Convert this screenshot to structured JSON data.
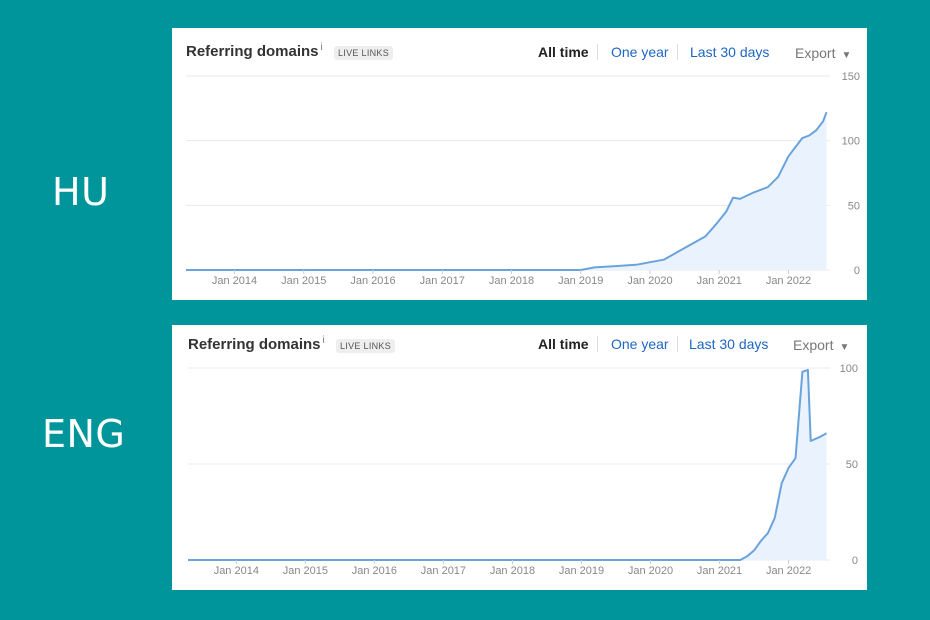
{
  "colors": {
    "background": "#00959a",
    "line": "#6aa3dc",
    "fill": "#eaf3fd",
    "link": "#1f66c2",
    "grid": "#e8e8e8"
  },
  "labels": {
    "top": "HU",
    "bottom": "ENG"
  },
  "header": {
    "title": "Referring domains",
    "info": "i",
    "badge": "LIVE LINKS",
    "ranges": [
      "All time",
      "One year",
      "Last 30 days"
    ],
    "active_range": "All time",
    "export": "Export",
    "export_icon": "caret-down-icon"
  },
  "chart_data": [
    {
      "type": "area",
      "title": "Referring domains",
      "series_label": "HU",
      "x_ticks": [
        "Jan 2014",
        "Jan 2015",
        "Jan 2016",
        "Jan 2017",
        "Jan 2018",
        "Jan 2019",
        "Jan 2020",
        "Jan 2021",
        "Jan 2022"
      ],
      "y_ticks": [
        0,
        50,
        100,
        150
      ],
      "ylim": [
        0,
        150
      ],
      "xlim": [
        2013.3,
        2022.6
      ],
      "grid": true,
      "points": [
        [
          2013.3,
          0
        ],
        [
          2019.0,
          0
        ],
        [
          2019.2,
          2
        ],
        [
          2019.5,
          3
        ],
        [
          2019.8,
          4
        ],
        [
          2020.0,
          6
        ],
        [
          2020.2,
          8
        ],
        [
          2020.4,
          14
        ],
        [
          2020.6,
          20
        ],
        [
          2020.8,
          26
        ],
        [
          2020.95,
          35
        ],
        [
          2021.1,
          45
        ],
        [
          2021.2,
          56
        ],
        [
          2021.3,
          55
        ],
        [
          2021.5,
          60
        ],
        [
          2021.7,
          64
        ],
        [
          2021.85,
          72
        ],
        [
          2022.0,
          88
        ],
        [
          2022.1,
          95
        ],
        [
          2022.2,
          102
        ],
        [
          2022.3,
          104
        ],
        [
          2022.4,
          108
        ],
        [
          2022.5,
          115
        ],
        [
          2022.55,
          122
        ]
      ]
    },
    {
      "type": "area",
      "title": "Referring domains",
      "series_label": "ENG",
      "x_ticks": [
        "Jan 2014",
        "Jan 2015",
        "Jan 2016",
        "Jan 2017",
        "Jan 2018",
        "Jan 2019",
        "Jan 2020",
        "Jan 2021",
        "Jan 2022"
      ],
      "y_ticks": [
        0,
        50,
        100
      ],
      "ylim": [
        0,
        100
      ],
      "xlim": [
        2013.3,
        2022.6
      ],
      "grid": true,
      "points": [
        [
          2013.3,
          0
        ],
        [
          2021.3,
          0
        ],
        [
          2021.4,
          2
        ],
        [
          2021.5,
          5
        ],
        [
          2021.6,
          10
        ],
        [
          2021.7,
          14
        ],
        [
          2021.8,
          22
        ],
        [
          2021.9,
          40
        ],
        [
          2022.0,
          48
        ],
        [
          2022.1,
          53
        ],
        [
          2022.2,
          98
        ],
        [
          2022.28,
          99
        ],
        [
          2022.32,
          62
        ],
        [
          2022.45,
          64
        ],
        [
          2022.55,
          66
        ]
      ]
    }
  ]
}
